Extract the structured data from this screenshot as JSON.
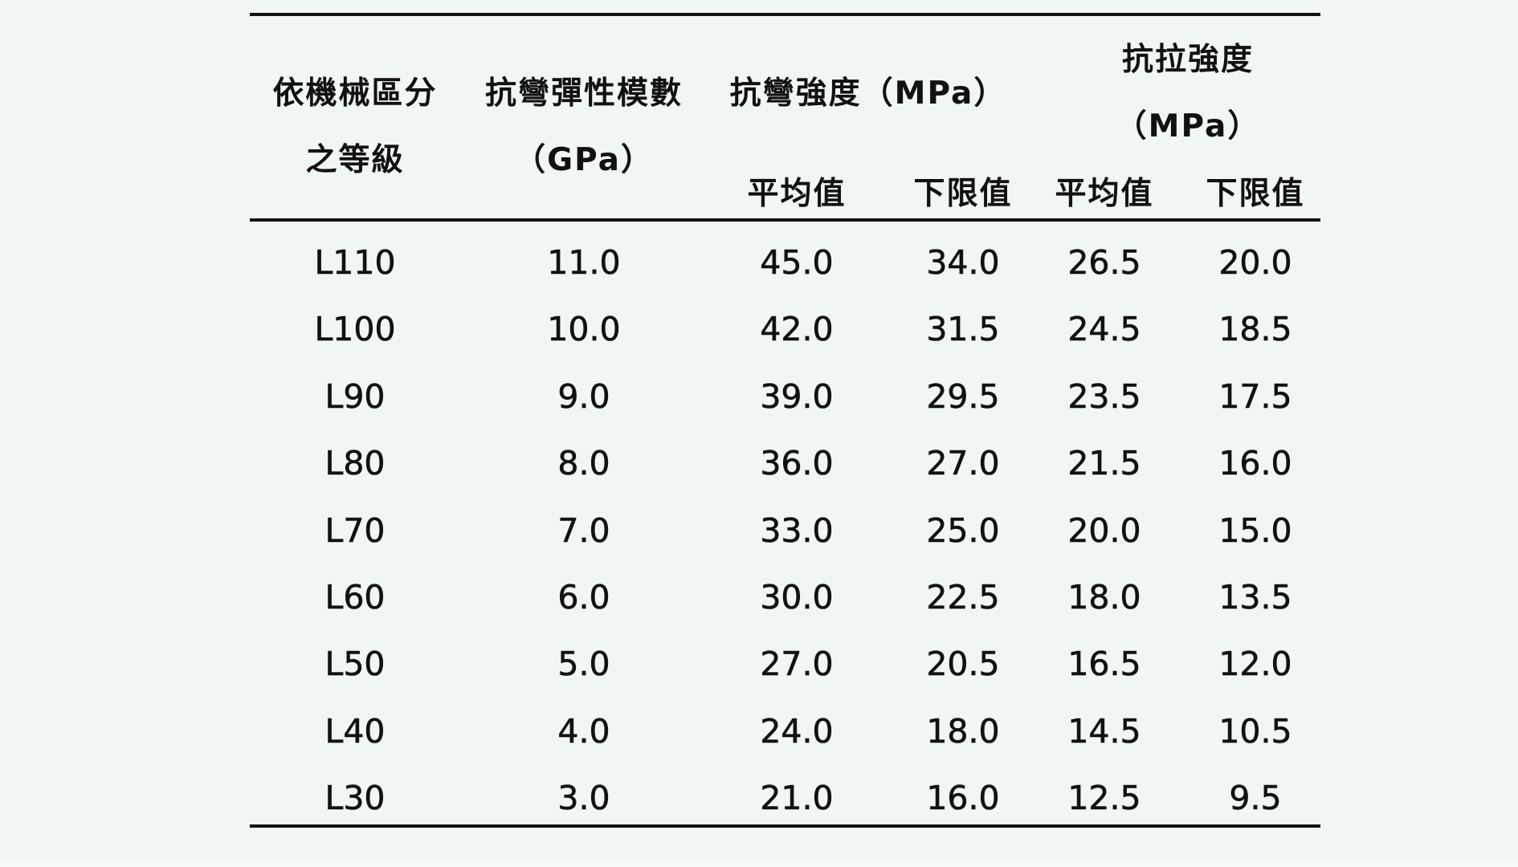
{
  "table": {
    "headers": {
      "grade_line1": "依機械區分",
      "grade_line2": "之等級",
      "moe_line1": "抗彎彈性模數",
      "moe_line2": "（GPa）",
      "bending_strength": "抗彎強度（MPa）",
      "tensile_line1": "抗拉強度",
      "tensile_line2": "（MPa）",
      "bending_avg": "平均值",
      "bending_lower": "下限值",
      "tensile_avg": "平均值",
      "tensile_lower": "下限值"
    },
    "rows": [
      {
        "grade": "L110",
        "moe": "11.0",
        "bend_avg": "45.0",
        "bend_low": "34.0",
        "ten_avg": "26.5",
        "ten_low": "20.0"
      },
      {
        "grade": "L100",
        "moe": "10.0",
        "bend_avg": "42.0",
        "bend_low": "31.5",
        "ten_avg": "24.5",
        "ten_low": "18.5"
      },
      {
        "grade": "L90",
        "moe": "9.0",
        "bend_avg": "39.0",
        "bend_low": "29.5",
        "ten_avg": "23.5",
        "ten_low": "17.5"
      },
      {
        "grade": "L80",
        "moe": "8.0",
        "bend_avg": "36.0",
        "bend_low": "27.0",
        "ten_avg": "21.5",
        "ten_low": "16.0"
      },
      {
        "grade": "L70",
        "moe": "7.0",
        "bend_avg": "33.0",
        "bend_low": "25.0",
        "ten_avg": "20.0",
        "ten_low": "15.0"
      },
      {
        "grade": "L60",
        "moe": "6.0",
        "bend_avg": "30.0",
        "bend_low": "22.5",
        "ten_avg": "18.0",
        "ten_low": "13.5"
      },
      {
        "grade": "L50",
        "moe": "5.0",
        "bend_avg": "27.0",
        "bend_low": "20.5",
        "ten_avg": "16.5",
        "ten_low": "12.0"
      },
      {
        "grade": "L40",
        "moe": "4.0",
        "bend_avg": "24.0",
        "bend_low": "18.0",
        "ten_avg": "14.5",
        "ten_low": "10.5"
      },
      {
        "grade": "L30",
        "moe": "3.0",
        "bend_avg": "21.0",
        "bend_low": "16.0",
        "ten_avg": "12.5",
        "ten_low": "9.5"
      }
    ]
  }
}
